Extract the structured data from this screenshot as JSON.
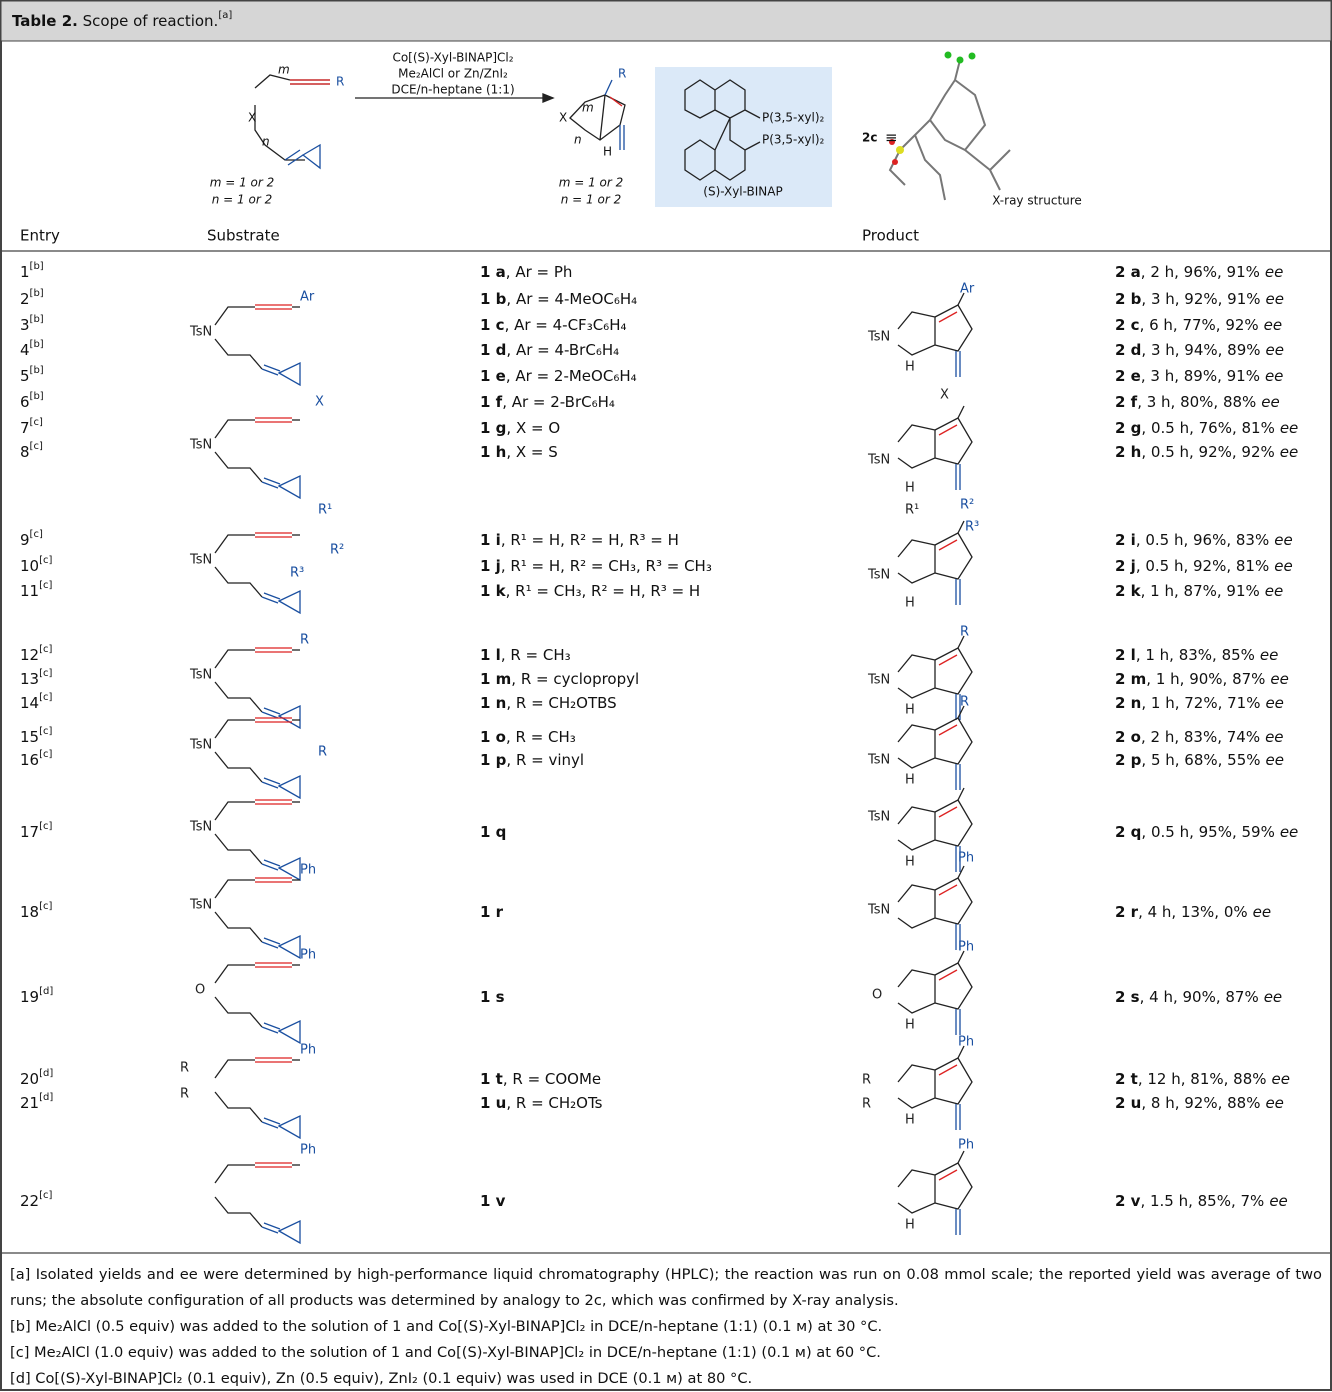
{
  "header": {
    "label": "Table 2.",
    "title": "Scope of reaction.",
    "note": "[a]"
  },
  "scheme": {
    "conditions": [
      "Co[(S)-Xyl-BINAP]Cl₂",
      "Me₂AlCl or Zn/ZnI₂",
      "DCE/n-heptane (1:1)"
    ],
    "substrate_labels": [
      "X",
      "R",
      "m",
      "n"
    ],
    "product_labels": [
      "X",
      "R",
      "m",
      "n",
      "H"
    ],
    "substrate_ranges": [
      "m = 1 or 2",
      "n = 1 or 2"
    ],
    "product_ranges": [
      "m = 1 or 2",
      "n = 1 or 2"
    ],
    "ligand": [
      "P(3,5-xyl)₂",
      "P(3,5-xyl)₂"
    ],
    "ligand_name": "(S)-Xyl-BINAP",
    "crystal": "2c",
    "equiv": "≡",
    "crystal_caption": "X-ray structure"
  },
  "columns": [
    "Entry",
    "Substrate",
    "Product"
  ],
  "rows": [
    {
      "entry": "1",
      "note": "[b]",
      "substrate": "1 a",
      "substrate_detail": ", Ar = Ph",
      "product": "2 a",
      "product_detail": ", 2 h, 96%, 91%",
      "ee": "ee"
    },
    {
      "entry": "2",
      "note": "[b]",
      "substrate": "1 b",
      "substrate_detail": ", Ar = 4-MeOC₆H₄",
      "product": "2 b",
      "product_detail": ", 3 h, 92%, 91%",
      "ee": "ee"
    },
    {
      "entry": "3",
      "note": "[b]",
      "substrate": "1 c",
      "substrate_detail": ", Ar = 4-CF₃C₆H₄",
      "product": "2 c",
      "product_detail": ", 6 h, 77%, 92%",
      "ee": "ee"
    },
    {
      "entry": "4",
      "note": "[b]",
      "substrate": "1 d",
      "substrate_detail": ", Ar = 4-BrC₆H₄",
      "product": "2 d",
      "product_detail": ", 3 h, 94%, 89%",
      "ee": "ee"
    },
    {
      "entry": "5",
      "note": "[b]",
      "substrate": "1 e",
      "substrate_detail": ", Ar = 2-MeOC₆H₄",
      "product": "2 e",
      "product_detail": ", 3 h, 89%, 91%",
      "ee": "ee"
    },
    {
      "entry": "6",
      "note": "[b]",
      "substrate": "1 f",
      "substrate_detail": ", Ar = 2-BrC₆H₄",
      "product": "2 f",
      "product_detail": ", 3 h, 80%, 88%",
      "ee": "ee"
    },
    {
      "entry": "7",
      "note": "[c]",
      "substrate": "1 g",
      "substrate_detail": ", X = O",
      "product": "2 g",
      "product_detail": ", 0.5 h, 76%, 81%",
      "ee": "ee"
    },
    {
      "entry": "8",
      "note": "[c]",
      "substrate": "1 h",
      "substrate_detail": ", X = S",
      "product": "2 h",
      "product_detail": ", 0.5 h, 92%, 92%",
      "ee": "ee"
    },
    {
      "entry": "9",
      "note": "[c]",
      "substrate": "1 i",
      "substrate_detail": ", R¹ = H, R² = H, R³ = H",
      "product": "2 i",
      "product_detail": ", 0.5 h, 96%, 83%",
      "ee": "ee"
    },
    {
      "entry": "10",
      "note": "[c]",
      "substrate": "1 j",
      "substrate_detail": ", R¹ = H, R² = CH₃, R³ = CH₃",
      "product": "2 j",
      "product_detail": ", 0.5 h, 92%, 81%",
      "ee": "ee"
    },
    {
      "entry": "11",
      "note": "[c]",
      "substrate": "1 k",
      "substrate_detail": ", R¹ = CH₃, R² = H, R³ = H",
      "product": "2 k",
      "product_detail": ", 1 h, 87%, 91%",
      "ee": "ee"
    },
    {
      "entry": "12",
      "note": "[c]",
      "substrate": "1 l",
      "substrate_detail": ", R = CH₃",
      "product": "2 l",
      "product_detail": ", 1 h, 83%, 85%",
      "ee": "ee"
    },
    {
      "entry": "13",
      "note": "[c]",
      "substrate": "1 m",
      "substrate_detail": ", R = cyclopropyl",
      "product": "2 m",
      "product_detail": ", 1 h, 90%, 87%",
      "ee": "ee"
    },
    {
      "entry": "14",
      "note": "[c]",
      "substrate": "1 n",
      "substrate_detail": ", R = CH₂OTBS",
      "product": "2 n",
      "product_detail": ", 1 h, 72%, 71%",
      "ee": "ee"
    },
    {
      "entry": "15",
      "note": "[c]",
      "substrate": "1 o",
      "substrate_detail": ", R = CH₃",
      "product": "2 o",
      "product_detail": ", 2 h, 83%, 74%",
      "ee": "ee"
    },
    {
      "entry": "16",
      "note": "[c]",
      "substrate": "1 p",
      "substrate_detail": ", R = vinyl",
      "product": "2 p",
      "product_detail": ", 5 h, 68%, 55%",
      "ee": "ee"
    },
    {
      "entry": "17",
      "note": "[c]",
      "substrate": "1 q",
      "product": "2 q",
      "product_detail": ", 0.5 h, 95%, 59%",
      "ee": "ee"
    },
    {
      "entry": "18",
      "note": "[c]",
      "substrate": "1 r",
      "product": "2 r",
      "product_detail": ", 4 h, 13%, 0%",
      "ee": "ee"
    },
    {
      "entry": "19",
      "note": "[d]",
      "substrate": "1 s",
      "product": "2 s",
      "product_detail": ", 4 h, 90%, 87%",
      "ee": "ee"
    },
    {
      "entry": "20",
      "note": "[d]",
      "substrate": "1 t",
      "substrate_detail": ", R = COOMe",
      "product": "2 t",
      "product_detail": ", 12 h, 81%, 88%",
      "ee": "ee"
    },
    {
      "entry": "21",
      "note": "[d]",
      "substrate": "1 u",
      "substrate_detail": ", R = CH₂OTs",
      "product": "2 u",
      "product_detail": ", 8 h, 92%, 88%",
      "ee": "ee"
    },
    {
      "entry": "22",
      "note": "[c]",
      "substrate": "1 v",
      "product": "2 v",
      "product_detail": ", 1.5 h, 85%, 7%",
      "ee": "ee"
    }
  ],
  "structures": [
    {
      "substrate": [
        "TsN",
        "Ar"
      ],
      "product": [
        "Ar",
        "TsN",
        "H"
      ]
    },
    {
      "substrate": [
        "TsN",
        "X"
      ],
      "product": [
        "X",
        "TsN",
        "H"
      ]
    },
    {
      "substrate": [
        "TsN",
        "R¹",
        "R²",
        "R³"
      ],
      "product": [
        "R¹",
        "R²",
        "R³",
        "TsN",
        "H"
      ]
    },
    {
      "substrate": [
        "TsN",
        "R"
      ],
      "product": [
        "R",
        "TsN",
        "H"
      ]
    },
    {
      "substrate": [
        "TsN",
        "R"
      ],
      "product": [
        "R",
        "TsN",
        "H"
      ]
    },
    {
      "substrate": [
        "TsN"
      ],
      "product": [
        "TsN",
        "H"
      ]
    },
    {
      "substrate": [
        "TsN",
        "Ph"
      ],
      "product": [
        "Ph",
        "TsN"
      ]
    },
    {
      "substrate": [
        "O",
        "Ph"
      ],
      "product": [
        "Ph",
        "O",
        "H"
      ]
    },
    {
      "substrate": [
        "R",
        "R",
        "Ph"
      ],
      "product": [
        "Ph",
        "R",
        "R",
        "H"
      ]
    },
    {
      "substrate": [
        "Ph"
      ],
      "product": [
        "Ph",
        "H"
      ]
    }
  ],
  "footnotes": [
    "[a] Isolated yields and ee were determined by high-performance liquid chromatography (HPLC); the reaction was run on 0.08 mmol scale; the reported yield was average of two runs; the absolute configuration of all products was determined by analogy to 2c, which was confirmed by X-ray analysis.",
    "[b] Me₂AlCl (0.5 equiv) was added to the solution of 1 and Co[(S)-Xyl-BINAP]Cl₂ in DCE/n-heptane (1:1) (0.1 м) at 30 °C.",
    "[c] Me₂AlCl (1.0 equiv) was added to the solution of 1 and Co[(S)-Xyl-BINAP]Cl₂ in DCE/n-heptane (1:1) (0.1 м) at 60 °C.",
    "[d] Co[(S)-Xyl-BINAP]Cl₂ (0.1 equiv), Zn (0.5 equiv), ZnI₂ (0.1 equiv) was used in DCE (0.1 м) at 80 °C."
  ]
}
